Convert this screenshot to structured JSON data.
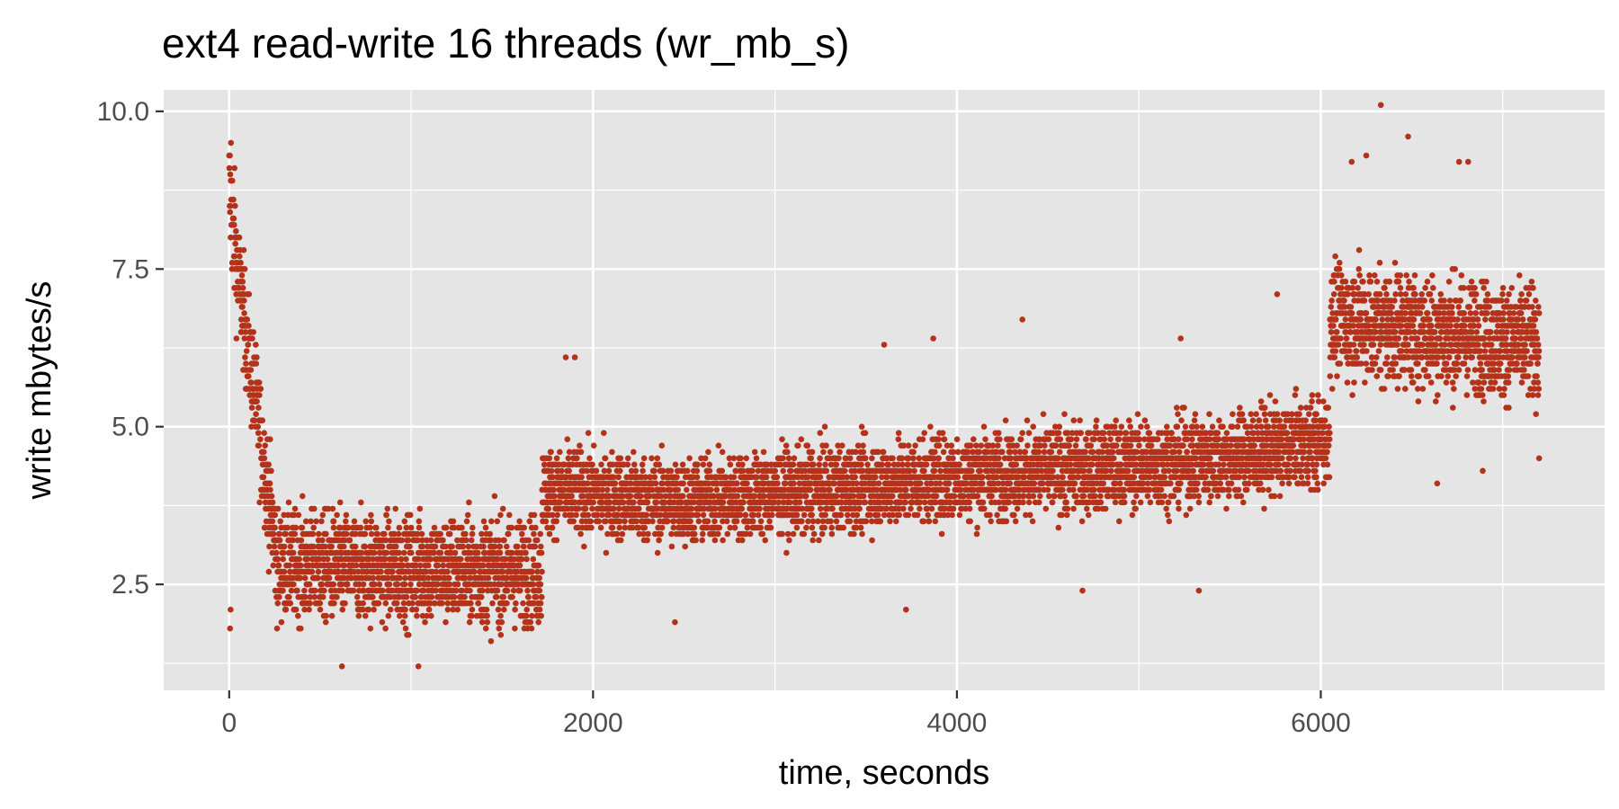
{
  "chart_data": {
    "type": "scatter",
    "title": "ext4 read-write 16 threads (wr_mb_s)",
    "xlabel": "time, seconds",
    "ylabel": "write mbytes/s",
    "xlim": [
      -360,
      7560
    ],
    "ylim": [
      0.82,
      10.34
    ],
    "x_ticks": [
      0,
      2000,
      4000,
      6000
    ],
    "x_tick_labels": [
      "0",
      "2000",
      "4000",
      "6000"
    ],
    "y_ticks": [
      2.5,
      5.0,
      7.5,
      10.0
    ],
    "y_tick_labels": [
      "2.5",
      "5.0",
      "7.5",
      "10.0"
    ],
    "grid": true,
    "point_color": "#b5321a",
    "panel_background": "#e5e5e5",
    "grid_color": "#ffffff",
    "sample_interval_seconds": 1,
    "x_range": [
      0,
      7200
    ],
    "segments": [
      {
        "x_start": 0,
        "x_end": 40,
        "y_center_start": 8.8,
        "y_center_end": 7.6,
        "spread": 0.9
      },
      {
        "x_start": 40,
        "x_end": 260,
        "y_center_start": 7.6,
        "y_center_end": 3.0,
        "spread": 0.8
      },
      {
        "x_start": 260,
        "x_end": 1720,
        "y_center_start": 2.8,
        "y_center_end": 2.7,
        "spread": 0.75
      },
      {
        "x_start": 1720,
        "x_end": 2500,
        "y_center_start": 4.0,
        "y_center_end": 3.8,
        "spread": 0.6
      },
      {
        "x_start": 2500,
        "x_end": 4000,
        "y_center_start": 3.8,
        "y_center_end": 4.2,
        "spread": 0.6
      },
      {
        "x_start": 4000,
        "x_end": 5500,
        "y_center_start": 4.2,
        "y_center_end": 4.5,
        "spread": 0.6
      },
      {
        "x_start": 5500,
        "x_end": 6050,
        "y_center_start": 4.5,
        "y_center_end": 4.8,
        "spread": 0.6
      },
      {
        "x_start": 6050,
        "x_end": 7200,
        "y_center_start": 6.7,
        "y_center_end": 6.3,
        "spread": 0.8
      }
    ],
    "outliers": [
      {
        "x": 6330,
        "y": 10.1
      },
      {
        "x": 6480,
        "y": 9.6
      },
      {
        "x": 6760,
        "y": 9.2
      },
      {
        "x": 6810,
        "y": 9.2
      },
      {
        "x": 6250,
        "y": 9.3
      },
      {
        "x": 6170,
        "y": 9.2
      },
      {
        "x": 4360,
        "y": 6.7
      },
      {
        "x": 5760,
        "y": 7.1
      },
      {
        "x": 3870,
        "y": 6.4
      },
      {
        "x": 5230,
        "y": 6.4
      },
      {
        "x": 3600,
        "y": 6.3
      },
      {
        "x": 1850,
        "y": 6.1
      },
      {
        "x": 1900,
        "y": 6.1
      },
      {
        "x": 3720,
        "y": 2.1
      },
      {
        "x": 2450,
        "y": 1.9
      },
      {
        "x": 5330,
        "y": 2.4
      },
      {
        "x": 4690,
        "y": 2.4
      },
      {
        "x": 1040,
        "y": 1.2
      },
      {
        "x": 620,
        "y": 1.2
      },
      {
        "x": 6640,
        "y": 4.1
      },
      {
        "x": 6890,
        "y": 4.3
      },
      {
        "x": 7200,
        "y": 4.5
      },
      {
        "x": 10,
        "y": 9.5
      },
      {
        "x": 5,
        "y": 1.8
      },
      {
        "x": 8,
        "y": 2.1
      }
    ]
  }
}
